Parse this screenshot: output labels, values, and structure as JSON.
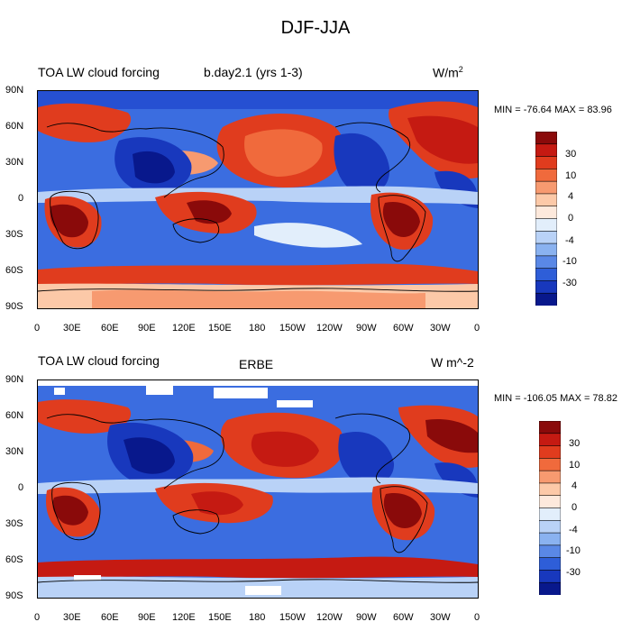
{
  "figure": {
    "title": "DJF-JJA"
  },
  "chart_data": [
    {
      "type": "heatmap",
      "left_title": "TOA LW cloud forcing",
      "center_title": "b.day2.1 (yrs 1-3)",
      "units": "W/m2",
      "units_base": "W/m",
      "units_sup": "2",
      "min_max": "MIN = -76.64 MAX =  83.96",
      "x_tick_labels": [
        "0",
        "30E",
        "60E",
        "90E",
        "120E",
        "150E",
        "180",
        "150W",
        "120W",
        "90W",
        "60W",
        "30W",
        "0"
      ],
      "y_tick_labels": [
        "90N",
        "60N",
        "30N",
        "0",
        "30S",
        "60S",
        "90S"
      ],
      "colorbar_levels": [
        "30",
        "10",
        "4",
        "0",
        "-4",
        "-10",
        "-30"
      ],
      "colorbar_colors": [
        "#8a0a0a",
        "#c51a12",
        "#e03c1e",
        "#f06a3c",
        "#f79a70",
        "#fcc9a8",
        "#fde9dc",
        "#e2eefb",
        "#b9d2f7",
        "#8ab2f0",
        "#5a88e6",
        "#2e5ed8",
        "#1838bd",
        "#08188c"
      ]
    },
    {
      "type": "heatmap",
      "left_title": "TOA LW cloud forcing",
      "center_title": "ERBE",
      "units": "W m^-2",
      "min_max": "MIN = -106.05 MAX =  78.82",
      "x_tick_labels": [
        "0",
        "30E",
        "60E",
        "90E",
        "120E",
        "150E",
        "180",
        "150W",
        "120W",
        "90W",
        "60W",
        "30W",
        "0"
      ],
      "y_tick_labels": [
        "90N",
        "60N",
        "30N",
        "0",
        "30S",
        "60S",
        "90S"
      ],
      "colorbar_levels": [
        "30",
        "10",
        "4",
        "0",
        "-4",
        "-10",
        "-30"
      ],
      "colorbar_colors": [
        "#8a0a0a",
        "#c51a12",
        "#e03c1e",
        "#f06a3c",
        "#f79a70",
        "#fcc9a8",
        "#fde9dc",
        "#e2eefb",
        "#b9d2f7",
        "#8ab2f0",
        "#5a88e6",
        "#2e5ed8",
        "#1838bd",
        "#08188c"
      ]
    }
  ]
}
